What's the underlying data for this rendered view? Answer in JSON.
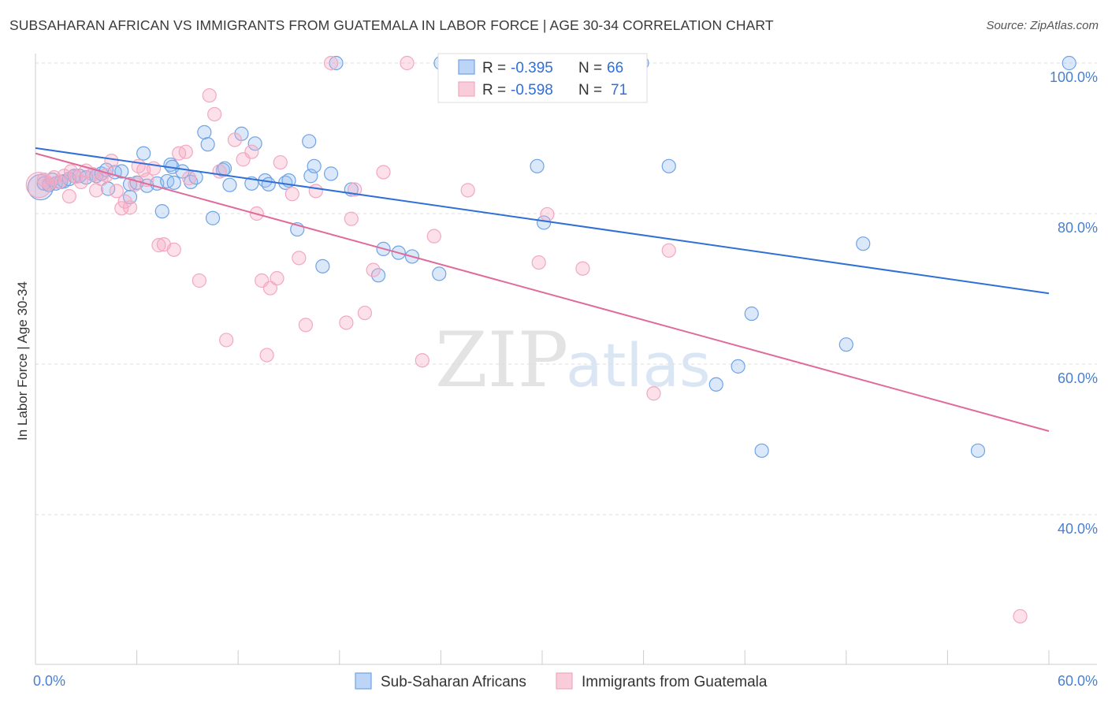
{
  "header": {
    "title": "SUBSAHARAN AFRICAN VS IMMIGRANTS FROM GUATEMALA IN LABOR FORCE | AGE 30-34 CORRELATION CHART",
    "source": "Source: ZipAtlas.com"
  },
  "watermark": {
    "zip": "ZIP",
    "atlas": "atlas"
  },
  "chart_data": {
    "type": "scatter",
    "title": "SUBSAHARAN AFRICAN VS IMMIGRANTS FROM GUATEMALA IN LABOR FORCE | AGE 30-34 CORRELATION CHART",
    "xlabel": "",
    "ylabel": "In Labor Force | Age 30-34",
    "xlim": [
      0,
      60
    ],
    "ylim": [
      21,
      103
    ],
    "x_tick_labels": [
      {
        "value": 0,
        "label": "0.0%"
      },
      {
        "value": 60,
        "label": "60.0%"
      }
    ],
    "y_tick_labels": [
      {
        "value": 100,
        "label": "100.0%"
      },
      {
        "value": 80,
        "label": "80.0%"
      },
      {
        "value": 60,
        "label": "60.0%"
      },
      {
        "value": 40,
        "label": "40.0%"
      }
    ],
    "grid": true,
    "legend_position": "top-center",
    "series": [
      {
        "name": "Sub-Saharan Africans",
        "color": "#6fa3e6",
        "line_color": "#2f6fd6",
        "R": "-0.395",
        "N": "66",
        "trend": {
          "x": [
            0,
            60
          ],
          "y": [
            88.7,
            69.4
          ]
        },
        "points": [
          [
            0.3,
            83.5
          ],
          [
            0.5,
            84.0
          ],
          [
            0.8,
            83.8
          ],
          [
            1.0,
            84.5
          ],
          [
            1.2,
            84.0
          ],
          [
            1.5,
            84.2
          ],
          [
            1.7,
            84.3
          ],
          [
            2.0,
            84.6
          ],
          [
            2.3,
            85.0
          ],
          [
            2.6,
            85.0
          ],
          [
            3.0,
            84.8
          ],
          [
            3.4,
            85.2
          ],
          [
            3.6,
            85.0
          ],
          [
            3.9,
            85.3
          ],
          [
            4.2,
            85.8
          ],
          [
            4.3,
            83.3
          ],
          [
            4.7,
            85.5
          ],
          [
            5.1,
            85.6
          ],
          [
            5.6,
            83.9
          ],
          [
            5.6,
            82.2
          ],
          [
            6.0,
            84.1
          ],
          [
            6.4,
            88.0
          ],
          [
            6.6,
            83.7
          ],
          [
            7.2,
            84.0
          ],
          [
            7.5,
            80.3
          ],
          [
            7.8,
            84.3
          ],
          [
            8.0,
            86.5
          ],
          [
            8.1,
            86.2
          ],
          [
            8.2,
            84.1
          ],
          [
            8.7,
            85.6
          ],
          [
            9.2,
            84.2
          ],
          [
            9.5,
            84.8
          ],
          [
            10.0,
            90.8
          ],
          [
            10.2,
            89.2
          ],
          [
            10.5,
            79.4
          ],
          [
            11.1,
            85.8
          ],
          [
            11.2,
            86.0
          ],
          [
            11.5,
            83.8
          ],
          [
            12.2,
            90.6
          ],
          [
            12.8,
            84.0
          ],
          [
            13.0,
            89.3
          ],
          [
            13.6,
            84.4
          ],
          [
            13.8,
            83.9
          ],
          [
            14.8,
            84.1
          ],
          [
            15.0,
            84.4
          ],
          [
            15.5,
            77.9
          ],
          [
            16.2,
            89.6
          ],
          [
            16.3,
            85.0
          ],
          [
            16.5,
            86.3
          ],
          [
            17.0,
            73.0
          ],
          [
            17.5,
            85.3
          ],
          [
            17.8,
            100.0
          ],
          [
            18.7,
            83.2
          ],
          [
            20.3,
            71.8
          ],
          [
            20.6,
            75.3
          ],
          [
            21.5,
            74.8
          ],
          [
            22.3,
            74.3
          ],
          [
            23.9,
            72.0
          ],
          [
            24.0,
            100.0
          ],
          [
            29.7,
            86.3
          ],
          [
            30.1,
            78.8
          ],
          [
            35.9,
            100.0
          ],
          [
            37.5,
            86.3
          ],
          [
            40.3,
            57.3
          ],
          [
            41.6,
            59.7
          ],
          [
            42.4,
            66.7
          ],
          [
            43.0,
            48.5
          ],
          [
            48.0,
            62.6
          ],
          [
            49.0,
            76.0
          ],
          [
            55.8,
            48.5
          ],
          [
            61.2,
            100.0
          ]
        ]
      },
      {
        "name": "Immigrants from Guatemala",
        "color": "#f2a8c0",
        "line_color": "#e06b9a",
        "R": "-0.598",
        "N": "71",
        "trend": {
          "x": [
            0,
            60
          ],
          "y": [
            88.0,
            51.1
          ]
        },
        "points": [
          [
            0.2,
            83.8
          ],
          [
            0.5,
            84.5
          ],
          [
            0.8,
            84.0
          ],
          [
            1.1,
            84.8
          ],
          [
            1.4,
            84.2
          ],
          [
            1.7,
            85.0
          ],
          [
            2.0,
            82.3
          ],
          [
            2.1,
            85.6
          ],
          [
            2.4,
            84.9
          ],
          [
            2.7,
            84.2
          ],
          [
            3.0,
            85.7
          ],
          [
            3.4,
            85.2
          ],
          [
            3.6,
            83.1
          ],
          [
            3.9,
            84.6
          ],
          [
            4.2,
            85.1
          ],
          [
            4.5,
            87.0
          ],
          [
            4.8,
            83.0
          ],
          [
            5.1,
            80.7
          ],
          [
            5.3,
            81.6
          ],
          [
            5.6,
            80.8
          ],
          [
            5.9,
            83.9
          ],
          [
            6.1,
            86.3
          ],
          [
            6.4,
            85.8
          ],
          [
            6.6,
            84.5
          ],
          [
            7.0,
            86.0
          ],
          [
            7.3,
            75.8
          ],
          [
            7.6,
            75.9
          ],
          [
            8.2,
            75.2
          ],
          [
            8.5,
            88.0
          ],
          [
            8.9,
            88.2
          ],
          [
            9.1,
            84.7
          ],
          [
            9.7,
            71.1
          ],
          [
            10.3,
            95.7
          ],
          [
            10.6,
            93.2
          ],
          [
            10.9,
            85.6
          ],
          [
            11.3,
            63.2
          ],
          [
            11.8,
            89.8
          ],
          [
            12.3,
            87.2
          ],
          [
            12.8,
            88.2
          ],
          [
            13.1,
            80.0
          ],
          [
            13.4,
            71.1
          ],
          [
            13.7,
            61.2
          ],
          [
            13.9,
            70.1
          ],
          [
            14.3,
            71.4
          ],
          [
            14.5,
            86.8
          ],
          [
            15.2,
            82.6
          ],
          [
            15.6,
            74.1
          ],
          [
            16.0,
            65.2
          ],
          [
            16.6,
            83.0
          ],
          [
            17.5,
            100.0
          ],
          [
            18.4,
            65.5
          ],
          [
            18.7,
            79.3
          ],
          [
            18.9,
            83.2
          ],
          [
            19.5,
            66.8
          ],
          [
            20.0,
            72.5
          ],
          [
            20.6,
            85.5
          ],
          [
            22.0,
            100.0
          ],
          [
            22.9,
            60.5
          ],
          [
            23.6,
            77.0
          ],
          [
            25.6,
            83.1
          ],
          [
            29.8,
            73.5
          ],
          [
            30.3,
            79.9
          ],
          [
            32.4,
            72.7
          ],
          [
            36.6,
            56.1
          ],
          [
            37.5,
            75.1
          ],
          [
            58.3,
            26.5
          ]
        ]
      }
    ]
  },
  "legend": {
    "rows": [
      {
        "r_label": "R =",
        "r_value": "-0.395",
        "n_label": "N =",
        "n_value": "66"
      },
      {
        "r_label": "R =",
        "r_value": "-0.598",
        "n_label": "N =",
        "n_value": "71"
      }
    ]
  },
  "bottom_legend": {
    "items": [
      {
        "label": "Sub-Saharan Africans"
      },
      {
        "label": "Immigrants from Guatemala"
      }
    ]
  }
}
